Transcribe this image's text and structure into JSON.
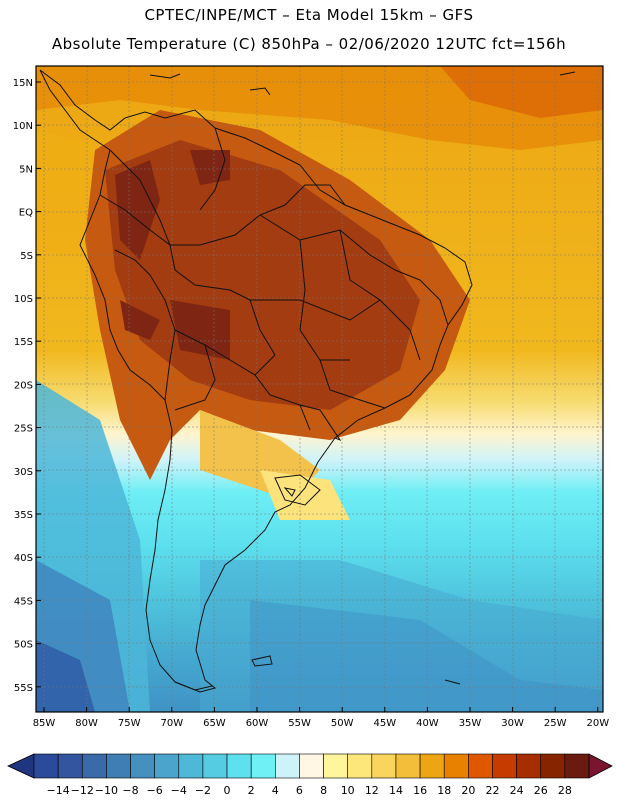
{
  "header": {
    "line1": "CPTEC/INPE/MCT –  Eta Model 15km – GFS",
    "line2": "Absolute Temperature (C) 850hPa – 02/06/2020 12UTC fct=156h"
  },
  "axes": {
    "lat_labels": [
      "15N",
      "10N",
      "5N",
      "EQ",
      "5S",
      "10S",
      "15S",
      "20S",
      "25S",
      "30S",
      "35S",
      "40S",
      "45S",
      "50S",
      "55S"
    ],
    "lon_labels": [
      "85W",
      "80W",
      "75W",
      "70W",
      "65W",
      "60W",
      "55W",
      "50W",
      "45W",
      "40W",
      "35W",
      "30W",
      "25W",
      "20W"
    ]
  },
  "colorbar": {
    "tick_labels": [
      "-14",
      "-12",
      "-10",
      "-8",
      "-6",
      "-4",
      "-2",
      "0",
      "2",
      "4",
      "6",
      "8",
      "10",
      "12",
      "14",
      "16",
      "18",
      "20",
      "22",
      "24",
      "26",
      "28"
    ],
    "colors": [
      "#2b4a9a",
      "#33549f",
      "#3b6aa8",
      "#3f7db5",
      "#4690c0",
      "#4aa4cb",
      "#4eb8d7",
      "#56cce3",
      "#5ee0ee",
      "#6ff0f5",
      "#cdf3f8",
      "#fff7e4",
      "#fff69b",
      "#fde77a",
      "#f9d55d",
      "#f3be39",
      "#eea514",
      "#e88000",
      "#df5800",
      "#c63c00",
      "#a52d00",
      "#872400",
      "#6b1a10"
    ],
    "under_color": "#20357f",
    "over_color": "#7a1530"
  },
  "map": {
    "ocean_warm": "#eca912",
    "land_hot": "#a33c10"
  }
}
